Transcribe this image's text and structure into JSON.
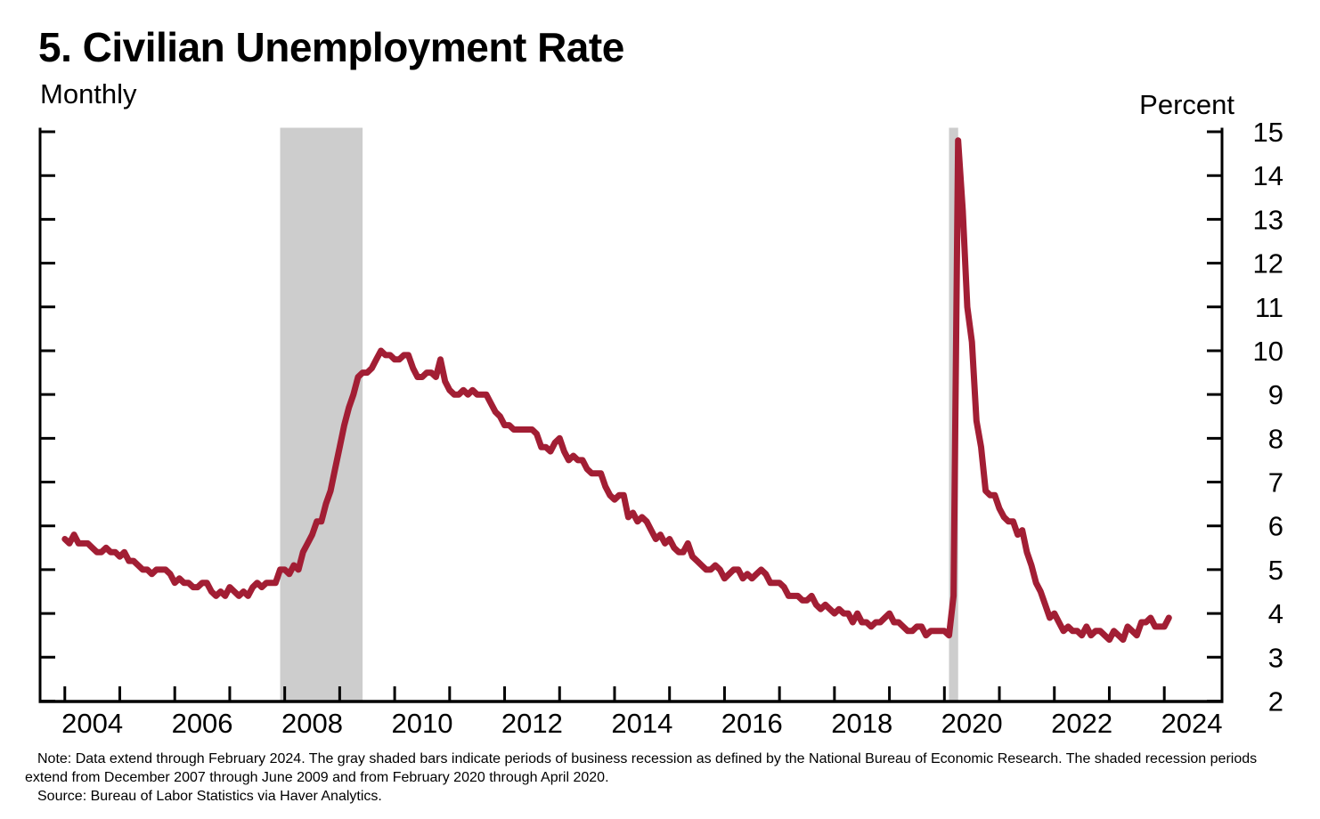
{
  "chart_data": {
    "type": "line",
    "title": "5. Civilian Unemployment Rate",
    "subtitle": "Monthly",
    "unit_label": "Percent",
    "frequency": "monthly",
    "x_start_year": 2004,
    "x_start_month": 1,
    "xlim": [
      2003.55,
      2025.05
    ],
    "ylim": [
      2,
      15
    ],
    "y_ticks": [
      2,
      3,
      4,
      5,
      6,
      7,
      8,
      9,
      10,
      11,
      12,
      13,
      14,
      15
    ],
    "x_tick_years": {
      "from": 2004,
      "to": 2024,
      "step": 1
    },
    "x_label_years": [
      2004,
      2006,
      2008,
      2010,
      2012,
      2014,
      2016,
      2018,
      2020,
      2022,
      2024
    ],
    "grid": false,
    "legend": "none",
    "axis_color": "#000000",
    "band_color": "#CDCDCD",
    "recession_bands": [
      {
        "start_year": 2007,
        "start_month": 12,
        "end_year": 2009,
        "end_month": 6
      },
      {
        "start_year": 2020,
        "start_month": 2,
        "end_year": 2020,
        "end_month": 4
      }
    ],
    "series": [
      {
        "name": "Civilian unemployment rate",
        "color": "#A21E34",
        "values": [
          5.7,
          5.6,
          5.8,
          5.6,
          5.6,
          5.6,
          5.5,
          5.4,
          5.4,
          5.5,
          5.4,
          5.4,
          5.3,
          5.4,
          5.2,
          5.2,
          5.1,
          5.0,
          5.0,
          4.9,
          5.0,
          5.0,
          5.0,
          4.9,
          4.7,
          4.8,
          4.7,
          4.7,
          4.6,
          4.6,
          4.7,
          4.7,
          4.5,
          4.4,
          4.5,
          4.4,
          4.6,
          4.5,
          4.4,
          4.5,
          4.4,
          4.6,
          4.7,
          4.6,
          4.7,
          4.7,
          4.7,
          5.0,
          5.0,
          4.9,
          5.1,
          5.0,
          5.4,
          5.6,
          5.8,
          6.1,
          6.1,
          6.5,
          6.8,
          7.3,
          7.8,
          8.3,
          8.7,
          9.0,
          9.4,
          9.5,
          9.5,
          9.6,
          9.8,
          10.0,
          9.9,
          9.9,
          9.8,
          9.8,
          9.9,
          9.9,
          9.6,
          9.4,
          9.4,
          9.5,
          9.5,
          9.4,
          9.8,
          9.3,
          9.1,
          9.0,
          9.0,
          9.1,
          9.0,
          9.1,
          9.0,
          9.0,
          9.0,
          8.8,
          8.6,
          8.5,
          8.3,
          8.3,
          8.2,
          8.2,
          8.2,
          8.2,
          8.2,
          8.1,
          7.8,
          7.8,
          7.7,
          7.9,
          8.0,
          7.7,
          7.5,
          7.6,
          7.5,
          7.5,
          7.3,
          7.2,
          7.2,
          7.2,
          6.9,
          6.7,
          6.6,
          6.7,
          6.7,
          6.2,
          6.3,
          6.1,
          6.2,
          6.1,
          5.9,
          5.7,
          5.8,
          5.6,
          5.7,
          5.5,
          5.4,
          5.4,
          5.6,
          5.3,
          5.2,
          5.1,
          5.0,
          5.0,
          5.1,
          5.0,
          4.8,
          4.9,
          5.0,
          5.0,
          4.8,
          4.9,
          4.8,
          4.9,
          5.0,
          4.9,
          4.7,
          4.7,
          4.7,
          4.6,
          4.4,
          4.4,
          4.4,
          4.3,
          4.3,
          4.4,
          4.2,
          4.1,
          4.2,
          4.1,
          4.0,
          4.1,
          4.0,
          4.0,
          3.8,
          4.0,
          3.8,
          3.8,
          3.7,
          3.8,
          3.8,
          3.9,
          4.0,
          3.8,
          3.8,
          3.7,
          3.6,
          3.6,
          3.7,
          3.7,
          3.5,
          3.6,
          3.6,
          3.6,
          3.6,
          3.5,
          4.4,
          14.8,
          13.2,
          11.0,
          10.2,
          8.4,
          7.8,
          6.8,
          6.7,
          6.7,
          6.4,
          6.2,
          6.1,
          6.1,
          5.8,
          5.9,
          5.4,
          5.1,
          4.7,
          4.5,
          4.2,
          3.9,
          4.0,
          3.8,
          3.6,
          3.7,
          3.6,
          3.6,
          3.5,
          3.7,
          3.5,
          3.6,
          3.6,
          3.5,
          3.4,
          3.6,
          3.5,
          3.4,
          3.7,
          3.6,
          3.5,
          3.8,
          3.8,
          3.9,
          3.7,
          3.7,
          3.7,
          3.9
        ]
      }
    ]
  },
  "notes": {
    "note": "Note: Data extend through February 2024. The gray shaded bars indicate periods of business recession as defined by the National Bureau of Economic Research. The shaded recession periods extend from December 2007 through June 2009 and from February 2020 through April 2020.",
    "source": "Source: Bureau of Labor Statistics via Haver Analytics."
  }
}
